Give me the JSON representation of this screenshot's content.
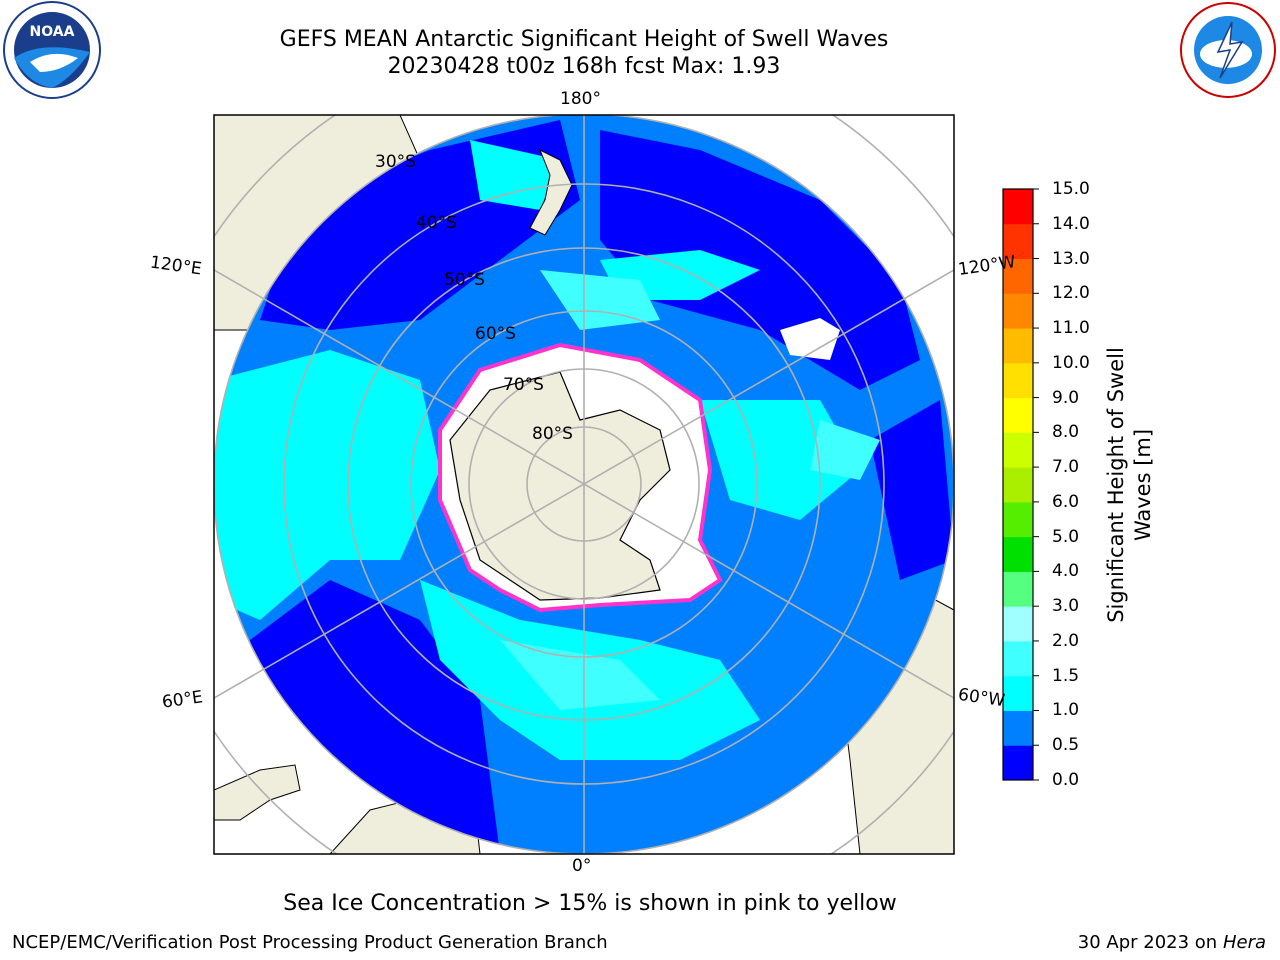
{
  "title": {
    "line1": "GEFS MEAN Antarctic Significant Height of Swell Waves",
    "line2": "20230428 t00z 168h fcst   Max: 1.93"
  },
  "map": {
    "projection": "south-polar-stereographic",
    "lon_labels": [
      "180°",
      "120°E",
      "120°W",
      "60°E",
      "60°W",
      "0°"
    ],
    "lat_labels": [
      "30°S",
      "40°S",
      "50°S",
      "60°S",
      "70°S",
      "80°S"
    ],
    "colors": {
      "land": "#efeedc",
      "sea_ice": "#ffffff",
      "ice_edge": "#ff33cc",
      "grid": "#b0b0b0"
    }
  },
  "colorbar": {
    "label_line1": "Significant Height of Swell",
    "label_line2": "Waves [m]",
    "ticks": [
      "0.0",
      "0.5",
      "1.0",
      "1.5",
      "2.0",
      "3.0",
      "4.0",
      "5.0",
      "6.0",
      "7.0",
      "8.0",
      "9.0",
      "10.0",
      "11.0",
      "12.0",
      "13.0",
      "14.0",
      "15.0"
    ],
    "colors": [
      "#0000ff",
      "#0080ff",
      "#00ffff",
      "#40ffff",
      "#a0ffff",
      "#55ff80",
      "#00e000",
      "#55ee00",
      "#aaee00",
      "#ccff00",
      "#ffff00",
      "#ffe000",
      "#ffbb00",
      "#ff8800",
      "#ff6600",
      "#ff3300",
      "#ff0000"
    ]
  },
  "note": "Sea Ice Concentration > 15% is shown in pink to yellow",
  "footer": {
    "left": "NCEP/EMC/Verification Post Processing Product Generation Branch",
    "right_prefix": "30 Apr 2023 on ",
    "right_system": "Hera"
  }
}
